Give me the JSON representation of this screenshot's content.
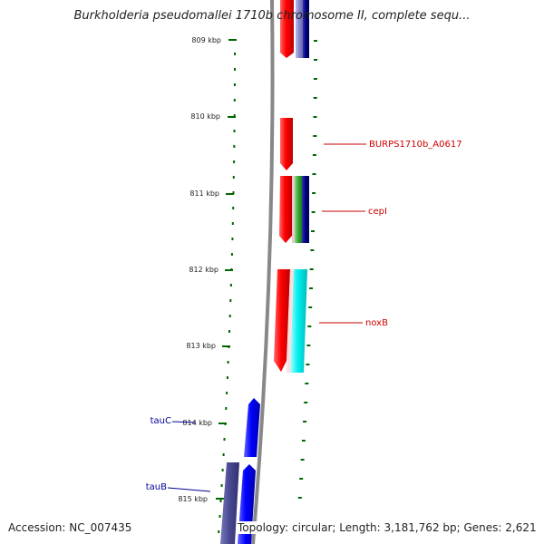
{
  "title": "Burkholderia pseudomallei 1710b chromosome II, complete sequ...",
  "footer": {
    "accession": "Accession: NC_007435",
    "summary": "Topology: circular; Length: 3,181,762 bp; Genes: 2,621"
  },
  "scale": {
    "ticks": [
      "809 kbp",
      "810 kbp",
      "811 kbp",
      "812 kbp",
      "813 kbp",
      "814 kbp",
      "815 kbp"
    ]
  },
  "genes": {
    "labels": [
      {
        "name": "BURPS1710b_A0617",
        "color": "#cc0000"
      },
      {
        "name": "cepI",
        "color": "#cc0000"
      },
      {
        "name": "noxB",
        "color": "#cc0000"
      },
      {
        "name": "tauC",
        "color": "#000099"
      },
      {
        "name": "tauB",
        "color": "#000099"
      }
    ]
  },
  "colors": {
    "red": "#ff0000",
    "green": "#33aa33",
    "navy": "#000080",
    "blue": "#0000ff",
    "cyan": "#00eeee",
    "slate": "#484890",
    "lavender": "#8888cc",
    "tick_green": "#006600",
    "backbone": "#888888"
  }
}
